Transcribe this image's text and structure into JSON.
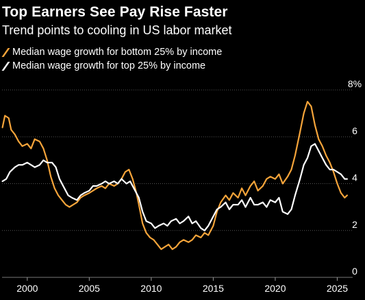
{
  "header": {
    "title": "Top Earners See Pay Rise Faster",
    "subtitle": "Trend points to cooling in US labor market"
  },
  "colors": {
    "bottom": "#f5a43a",
    "top": "#ffffff",
    "grid": "#555555",
    "background": "#000000"
  },
  "chart_data": {
    "type": "line",
    "title": "Top Earners See Pay Rise Faster",
    "subtitle": "Trend points to cooling in US labor market",
    "ylim": [
      0,
      8
    ],
    "xlim": [
      1997.8,
      2026.3
    ],
    "y_ticks": [
      0,
      2,
      4,
      6,
      8
    ],
    "y_tick_labels": [
      "0",
      "2",
      "4",
      "6",
      "8%"
    ],
    "x_ticks": [
      2000,
      2005,
      2010,
      2015,
      2020,
      2025
    ],
    "x_tick_labels": [
      "2000",
      "2005",
      "2010",
      "2015",
      "2020",
      "2025"
    ],
    "grid": "horizontal",
    "legend_position": "top-left",
    "series": [
      {
        "name": "Median wage growth for bottom 25% by income",
        "color": "#f5a43a",
        "x": [
          1998.0,
          1998.2,
          1998.5,
          1998.7,
          1999.0,
          1999.3,
          1999.6,
          2000.0,
          2000.3,
          2000.6,
          2001.0,
          2001.3,
          2001.6,
          2001.9,
          2002.2,
          2002.5,
          2002.8,
          2003.1,
          2003.4,
          2003.7,
          2004.0,
          2004.3,
          2004.6,
          2005.0,
          2005.3,
          2005.6,
          2006.0,
          2006.3,
          2006.6,
          2007.0,
          2007.3,
          2007.6,
          2007.9,
          2008.2,
          2008.5,
          2008.8,
          2009.0,
          2009.3,
          2009.6,
          2009.9,
          2010.2,
          2010.5,
          2010.8,
          2011.1,
          2011.4,
          2011.7,
          2012.0,
          2012.3,
          2012.6,
          2013.0,
          2013.3,
          2013.6,
          2014.0,
          2014.3,
          2014.6,
          2015.0,
          2015.3,
          2015.6,
          2016.0,
          2016.3,
          2016.6,
          2017.0,
          2017.3,
          2017.6,
          2018.0,
          2018.3,
          2018.6,
          2019.0,
          2019.3,
          2019.6,
          2020.0,
          2020.3,
          2020.6,
          2021.0,
          2021.3,
          2021.6,
          2022.0,
          2022.3,
          2022.6,
          2022.9,
          2023.2,
          2023.5,
          2023.8,
          2024.1,
          2024.4,
          2024.7,
          2025.0,
          2025.3,
          2025.6,
          2025.8
        ],
        "values": [
          6.4,
          6.9,
          6.8,
          6.3,
          6.1,
          5.8,
          5.6,
          5.7,
          5.5,
          5.9,
          5.8,
          5.5,
          5.0,
          4.3,
          3.8,
          3.5,
          3.3,
          3.1,
          3.0,
          3.1,
          3.2,
          3.4,
          3.5,
          3.6,
          3.7,
          3.8,
          3.9,
          3.8,
          4.0,
          3.9,
          4.0,
          4.2,
          4.5,
          4.6,
          4.2,
          3.6,
          3.1,
          2.3,
          1.9,
          1.7,
          1.6,
          1.4,
          1.2,
          1.3,
          1.4,
          1.2,
          1.3,
          1.5,
          1.6,
          1.5,
          1.6,
          1.8,
          1.7,
          1.9,
          1.8,
          2.2,
          2.8,
          3.2,
          3.5,
          3.3,
          3.6,
          3.4,
          3.8,
          3.5,
          3.9,
          4.1,
          3.7,
          3.9,
          4.2,
          4.3,
          4.2,
          4.4,
          4.0,
          4.3,
          4.6,
          5.2,
          6.2,
          7.0,
          7.5,
          7.3,
          6.5,
          5.9,
          5.6,
          5.2,
          4.9,
          4.5,
          4.0,
          3.6,
          3.4,
          3.5
        ]
      },
      {
        "name": "Median wage growth for top 25% by income",
        "color": "#ffffff",
        "x": [
          1998.0,
          1998.3,
          1998.6,
          1999.0,
          1999.3,
          1999.6,
          2000.0,
          2000.3,
          2000.6,
          2001.0,
          2001.3,
          2001.6,
          2002.0,
          2002.3,
          2002.6,
          2003.0,
          2003.3,
          2003.6,
          2004.0,
          2004.3,
          2004.6,
          2005.0,
          2005.3,
          2005.6,
          2006.0,
          2006.3,
          2006.6,
          2007.0,
          2007.3,
          2007.6,
          2008.0,
          2008.3,
          2008.6,
          2009.0,
          2009.3,
          2009.6,
          2010.0,
          2010.3,
          2010.6,
          2011.0,
          2011.3,
          2011.6,
          2012.0,
          2012.3,
          2012.6,
          2013.0,
          2013.3,
          2013.6,
          2014.0,
          2014.3,
          2014.6,
          2015.0,
          2015.3,
          2015.6,
          2016.0,
          2016.3,
          2016.6,
          2017.0,
          2017.3,
          2017.6,
          2018.0,
          2018.3,
          2018.6,
          2019.0,
          2019.3,
          2019.6,
          2020.0,
          2020.3,
          2020.6,
          2021.0,
          2021.3,
          2021.6,
          2022.0,
          2022.3,
          2022.6,
          2022.9,
          2023.2,
          2023.5,
          2023.8,
          2024.1,
          2024.4,
          2024.7,
          2025.0,
          2025.3,
          2025.6,
          2025.8
        ],
        "values": [
          4.1,
          4.2,
          4.5,
          4.7,
          4.8,
          4.8,
          4.9,
          4.8,
          4.7,
          4.8,
          5.0,
          4.9,
          4.9,
          4.7,
          4.2,
          3.8,
          3.5,
          3.4,
          3.3,
          3.5,
          3.6,
          3.7,
          3.9,
          3.9,
          4.0,
          4.1,
          4.0,
          4.1,
          4.0,
          4.2,
          4.0,
          4.1,
          3.8,
          3.4,
          2.8,
          2.4,
          2.3,
          2.1,
          2.2,
          2.3,
          2.2,
          2.4,
          2.5,
          2.3,
          2.4,
          2.6,
          2.3,
          2.4,
          2.1,
          2.0,
          2.2,
          2.6,
          2.9,
          3.0,
          3.2,
          2.9,
          3.1,
          3.1,
          3.3,
          3.0,
          3.4,
          3.1,
          3.1,
          3.2,
          3.0,
          3.3,
          3.2,
          3.4,
          2.8,
          2.7,
          2.9,
          3.5,
          4.2,
          4.8,
          5.1,
          5.6,
          5.7,
          5.4,
          5.1,
          4.8,
          4.6,
          4.6,
          4.5,
          4.4,
          4.2,
          4.2
        ]
      }
    ]
  }
}
